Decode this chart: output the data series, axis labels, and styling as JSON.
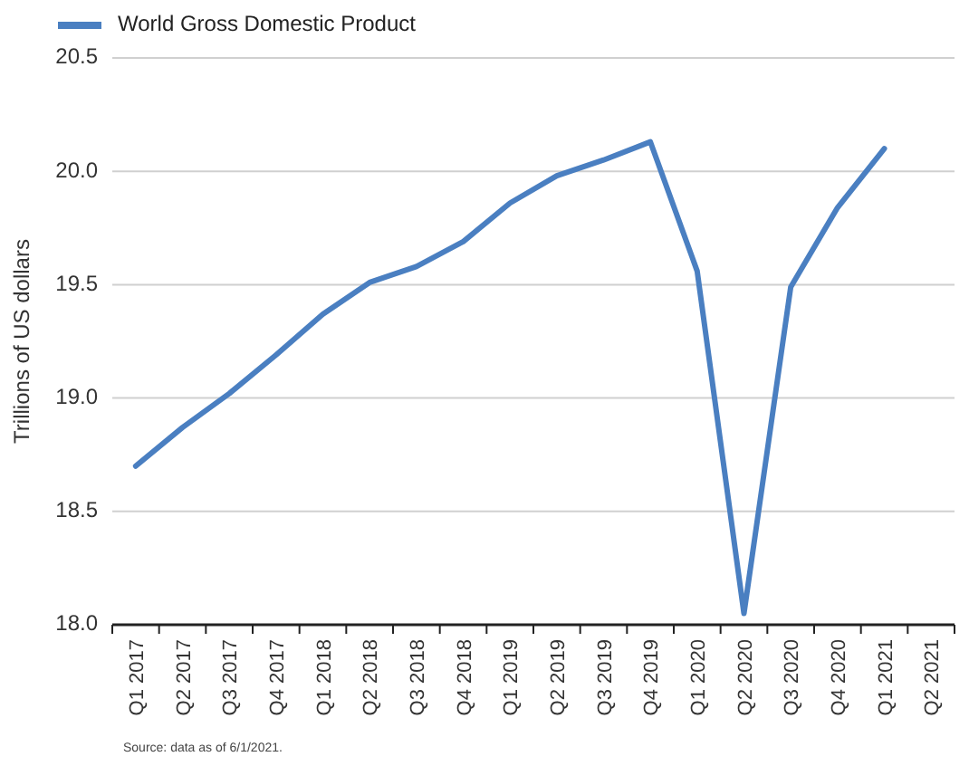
{
  "chart_data": {
    "type": "line",
    "ylabel": "Trillions of US dollars",
    "categories": [
      "Q1 2017",
      "Q2 2017",
      "Q3 2017",
      "Q4 2017",
      "Q1 2018",
      "Q2 2018",
      "Q3 2018",
      "Q4 2018",
      "Q1 2019",
      "Q2 2019",
      "Q3 2019",
      "Q4 2019",
      "Q1 2020",
      "Q2 2020",
      "Q3 2020",
      "Q4 2020",
      "Q1 2021",
      "Q2 2021"
    ],
    "series": [
      {
        "name": "World Gross Domestic Product",
        "color": "#4a7fc1",
        "values": [
          18.7,
          18.87,
          19.02,
          19.19,
          19.37,
          19.51,
          19.58,
          19.69,
          19.86,
          19.98,
          20.05,
          20.13,
          19.56,
          18.05,
          19.49,
          19.84,
          20.1,
          null
        ]
      }
    ],
    "ylim": [
      18.0,
      20.5
    ],
    "yticks": [
      {
        "value": 18.0,
        "label": "18.0"
      },
      {
        "value": 18.5,
        "label": "18.5"
      },
      {
        "value": 19.0,
        "label": "19.0"
      },
      {
        "value": 19.5,
        "label": "19.5"
      },
      {
        "value": 20.0,
        "label": "20.0"
      },
      {
        "value": 20.5,
        "label": "20.5"
      }
    ],
    "grid": "y",
    "legend": "top left",
    "marker": "none",
    "line_style": "solid",
    "annotations": [
      "Source: data as of 6/1/2021."
    ]
  }
}
